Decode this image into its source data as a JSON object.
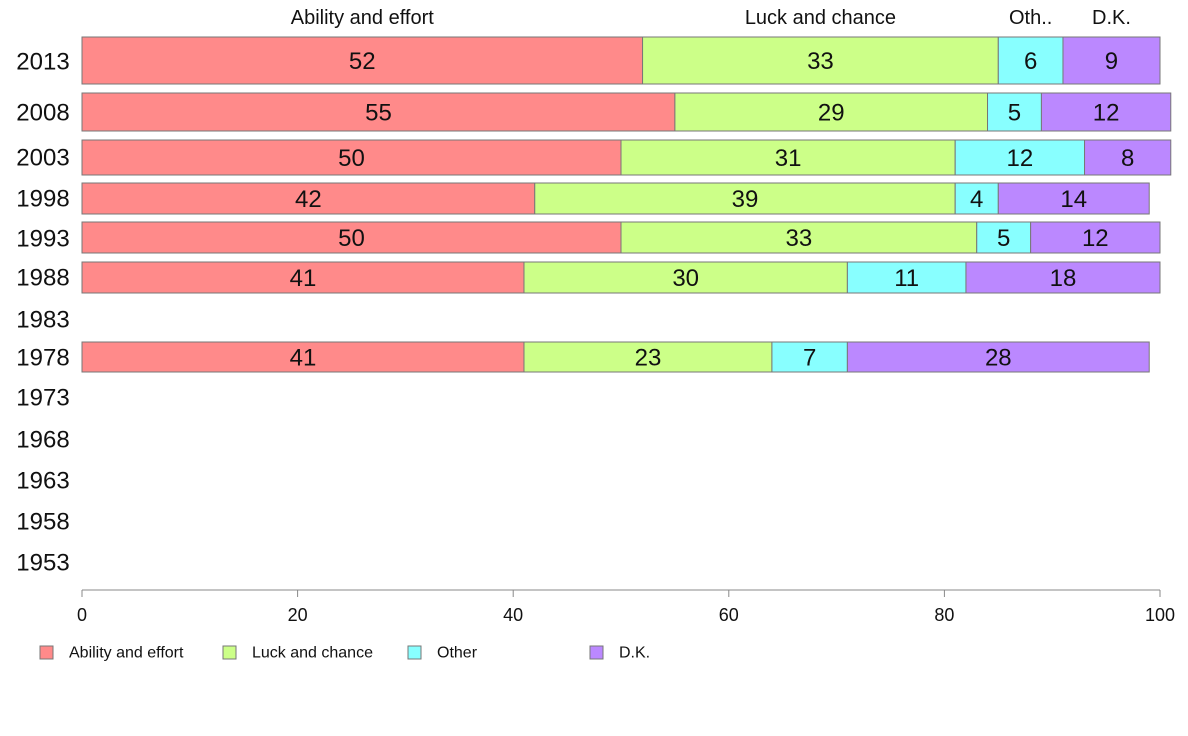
{
  "chart_data": {
    "type": "bar",
    "orientation": "horizontal",
    "stacked": true,
    "title": "",
    "xlabel": "",
    "ylabel": "",
    "xlim": [
      0,
      100
    ],
    "x_ticks": [
      "0",
      "20",
      "40",
      "60",
      "80",
      "100"
    ],
    "grid": false,
    "legend_position": "bottom",
    "categories": [
      "2013",
      "2008",
      "2003",
      "1998",
      "1993",
      "1988",
      "1983",
      "1978",
      "1973",
      "1968",
      "1963",
      "1958",
      "1953"
    ],
    "series": [
      {
        "name": "Ability and effort",
        "short": "Ability and effort",
        "color": "#ff8a8a",
        "values": [
          52,
          55,
          50,
          42,
          50,
          41,
          null,
          41,
          null,
          null,
          null,
          null,
          null
        ]
      },
      {
        "name": "Luck and chance",
        "short": "Luck and chance",
        "color": "#ccff88",
        "values": [
          33,
          29,
          31,
          39,
          33,
          30,
          null,
          23,
          null,
          null,
          null,
          null,
          null
        ]
      },
      {
        "name": "Other",
        "short": "Oth..",
        "color": "#88ffff",
        "values": [
          6,
          5,
          12,
          4,
          5,
          11,
          null,
          7,
          null,
          null,
          null,
          null,
          null
        ]
      },
      {
        "name": "D.K.",
        "short": "D.K.",
        "color": "#bb88ff",
        "values": [
          9,
          12,
          8,
          14,
          12,
          18,
          null,
          28,
          null,
          null,
          null,
          null,
          null
        ]
      }
    ]
  }
}
